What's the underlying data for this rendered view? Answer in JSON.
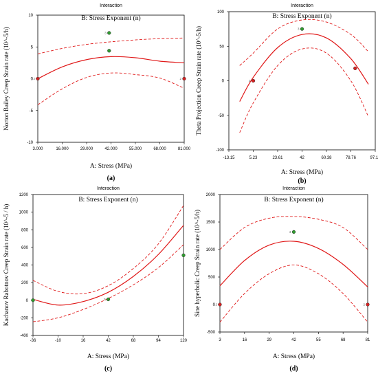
{
  "figure": {
    "caption_labels": [
      "(a)",
      "(b)",
      "(c)",
      "(d)"
    ]
  },
  "chart_data": [
    {
      "type": "line",
      "header": "Interaction",
      "subtitle": "B: Stress Exponent (n)",
      "xlabel": "A: Stress (MPa)",
      "ylabel": "Norton Bailey Creep Strain rate (10^-5/h)",
      "caption": "(a)",
      "xlim": [
        3,
        81
      ],
      "ylim": [
        -10,
        10
      ],
      "xticks": [
        "3.000",
        "16.000",
        "29.000",
        "42.000",
        "55.000",
        "68.000",
        "81.000"
      ],
      "xtick_values": [
        3,
        16,
        29,
        42,
        55,
        68,
        81
      ],
      "yticks": [
        "-10",
        "-5",
        "0",
        "5",
        "10"
      ],
      "ytick_values": [
        -10,
        -5,
        0,
        5,
        10
      ],
      "series": [
        {
          "role": "fit",
          "style": "solid",
          "x": [
            3,
            16,
            29,
            42,
            55,
            68,
            81
          ],
          "y": [
            0.0,
            1.86,
            3.0,
            3.47,
            3.3,
            2.76,
            2.5
          ]
        },
        {
          "role": "ci-upper",
          "style": "dashed",
          "x": [
            3,
            16,
            29,
            42,
            55,
            68,
            81
          ],
          "y": [
            3.9,
            4.76,
            5.4,
            5.8,
            6.1,
            6.3,
            6.4
          ]
        },
        {
          "role": "ci-lower",
          "style": "dashed",
          "x": [
            3,
            16,
            29,
            42,
            55,
            68,
            81
          ],
          "y": [
            -4.1,
            -1.6,
            0.2,
            0.9,
            0.65,
            0.1,
            -1.5
          ]
        }
      ],
      "points": [
        {
          "x": 3,
          "y": 0,
          "color": "#d42020",
          "label": "2"
        },
        {
          "x": 41,
          "y": 7.2,
          "color": "#2e9a2e",
          "label": "3"
        },
        {
          "x": 41,
          "y": 4.4,
          "color": "#2e9a2e",
          "label": ""
        },
        {
          "x": 81,
          "y": 0,
          "color": "#d42020",
          "label": "2"
        }
      ]
    },
    {
      "type": "line",
      "header": "Interaction",
      "subtitle": "B: Stress Exponent (n)",
      "xlabel": "A: Stress (MPa)",
      "ylabel": "Theta Projection Creep Strain rate (10^-5/h)",
      "caption": "(b)",
      "xlim": [
        -13.15,
        97.15
      ],
      "ylim": [
        -100,
        100
      ],
      "xticks": [
        "-13.15",
        "5.23",
        "23.61",
        "42",
        "60.38",
        "78.76",
        "97.15"
      ],
      "xtick_values": [
        -13.15,
        5.23,
        23.61,
        42,
        60.38,
        78.76,
        97.15
      ],
      "yticks": [
        "-100",
        "-50",
        "0",
        "50",
        "100"
      ],
      "ytick_values": [
        -100,
        -50,
        0,
        50,
        100
      ],
      "series": [
        {
          "role": "fit",
          "style": "solid",
          "x": [
            -5,
            5.23,
            23.61,
            42,
            60.38,
            78.76,
            92
          ],
          "y": [
            -30,
            5,
            48,
            67,
            62,
            32,
            -5
          ]
        },
        {
          "role": "ci-upper",
          "style": "dashed",
          "x": [
            -5,
            5.23,
            23.61,
            42,
            60.38,
            78.76,
            92
          ],
          "y": [
            22,
            40,
            75,
            88,
            85,
            67,
            42
          ]
        },
        {
          "role": "ci-lower",
          "style": "dashed",
          "x": [
            -5,
            5.23,
            23.61,
            42,
            60.38,
            78.76,
            92
          ],
          "y": [
            -75,
            -32,
            22,
            46,
            40,
            0,
            -52
          ]
        }
      ],
      "points": [
        {
          "x": 5.23,
          "y": 0,
          "color": "#d42020",
          "label": "2"
        },
        {
          "x": 42,
          "y": 75,
          "color": "#2e9a2e",
          "label": "3"
        },
        {
          "x": 82,
          "y": 18,
          "color": "#d42020",
          "label": ""
        }
      ]
    },
    {
      "type": "line",
      "header": "Interaction",
      "subtitle": "B: Stress Exponent (n)",
      "xlabel": "A: Stress (MPa)",
      "ylabel": "Kachanov Rabotnov Creep Strain rate (10^-5 / h)",
      "caption": "(c)",
      "xlim": [
        -36,
        120
      ],
      "ylim": [
        -400,
        1200
      ],
      "xticks": [
        "-36",
        "-10",
        "16",
        "42",
        "68",
        "94",
        "120"
      ],
      "xtick_values": [
        -36,
        -10,
        16,
        42,
        68,
        94,
        120
      ],
      "yticks": [
        "-400",
        "-200",
        "0",
        "200",
        "400",
        "600",
        "800",
        "1000",
        "1200"
      ],
      "ytick_values": [
        -400,
        -200,
        0,
        200,
        400,
        600,
        800,
        1000,
        1200
      ],
      "series": [
        {
          "role": "fit",
          "style": "solid",
          "x": [
            -36,
            -10,
            16,
            42,
            68,
            94,
            120
          ],
          "y": [
            10,
            -55,
            -15,
            90,
            270,
            520,
            850
          ]
        },
        {
          "role": "ci-upper",
          "style": "dashed",
          "x": [
            -36,
            -10,
            16,
            42,
            68,
            94,
            120
          ],
          "y": [
            225,
            100,
            75,
            165,
            360,
            640,
            1075
          ]
        },
        {
          "role": "ci-lower",
          "style": "dashed",
          "x": [
            -36,
            -10,
            16,
            42,
            68,
            94,
            120
          ],
          "y": [
            -245,
            -200,
            -105,
            20,
            175,
            370,
            630
          ]
        }
      ],
      "points": [
        {
          "x": -36,
          "y": 0,
          "color": "#2e9a2e",
          "label": ""
        },
        {
          "x": 42,
          "y": 10,
          "color": "#2e9a2e",
          "label": "2"
        },
        {
          "x": 120,
          "y": 510,
          "color": "#2e9a2e",
          "label": ""
        }
      ]
    },
    {
      "type": "line",
      "header": "Interaction",
      "subtitle": "B: Stress Exponent (n)",
      "xlabel": "A: Stress (MPa)",
      "ylabel": "Sine hyperbolic Creep Strain rate (10^-5/h)",
      "caption": "(d)",
      "xlim": [
        3,
        81
      ],
      "ylim": [
        -500,
        2000
      ],
      "xticks": [
        "3",
        "16",
        "29",
        "42",
        "55",
        "68",
        "81"
      ],
      "xtick_values": [
        3,
        16,
        29,
        42,
        55,
        68,
        81
      ],
      "yticks": [
        "-500",
        "0",
        "500",
        "1000",
        "1500",
        "2000"
      ],
      "ytick_values": [
        -500,
        0,
        500,
        1000,
        1500,
        2000
      ],
      "series": [
        {
          "role": "fit",
          "style": "solid",
          "x": [
            3,
            16,
            29,
            42,
            55,
            68,
            81
          ],
          "y": [
            340,
            800,
            1080,
            1150,
            1020,
            730,
            320
          ]
        },
        {
          "role": "ci-upper",
          "style": "dashed",
          "x": [
            3,
            16,
            29,
            42,
            55,
            68,
            81
          ],
          "y": [
            1000,
            1400,
            1570,
            1600,
            1550,
            1400,
            1000
          ]
        },
        {
          "role": "ci-lower",
          "style": "dashed",
          "x": [
            3,
            16,
            29,
            42,
            55,
            68,
            81
          ],
          "y": [
            -320,
            200,
            560,
            720,
            560,
            200,
            -320
          ]
        }
      ],
      "points": [
        {
          "x": 3,
          "y": 0,
          "color": "#d42020",
          "label": "2"
        },
        {
          "x": 42,
          "y": 1320,
          "color": "#2e9a2e",
          "label": "3"
        },
        {
          "x": 81,
          "y": 0,
          "color": "#d42020",
          "label": "2"
        }
      ]
    }
  ]
}
